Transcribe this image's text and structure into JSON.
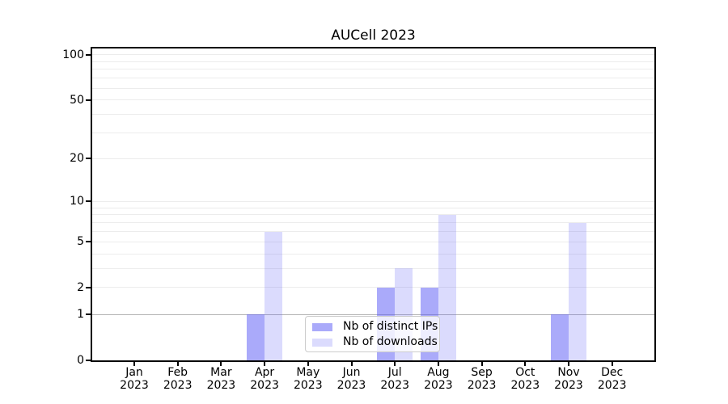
{
  "chart_data": {
    "type": "bar",
    "title": "AUCell 2023",
    "categories": [
      "Jan\n2023",
      "Feb\n2023",
      "Mar\n2023",
      "Apr\n2023",
      "May\n2023",
      "Jun\n2023",
      "Jul\n2023",
      "Aug\n2023",
      "Sep\n2023",
      "Oct\n2023",
      "Nov\n2023",
      "Dec\n2023"
    ],
    "series": [
      {
        "name": "Nb of distinct IPs",
        "color": "rgba(85,85,245,0.5)",
        "values": [
          0,
          0,
          0,
          1,
          0,
          0,
          2,
          2,
          0,
          0,
          1,
          0
        ]
      },
      {
        "name": "Nb of downloads",
        "color": "rgba(85,85,245,0.21)",
        "values": [
          0,
          0,
          0,
          6,
          0,
          0,
          3,
          8,
          0,
          0,
          7,
          0
        ]
      }
    ],
    "xlabel": "",
    "ylabel": "",
    "yscale": "log1p",
    "ylim": [
      0,
      110
    ],
    "yticks": [
      0,
      1,
      2,
      5,
      10,
      20,
      50,
      100
    ],
    "minor_gridlines": [
      2,
      3,
      4,
      5,
      6,
      7,
      8,
      9,
      10,
      20,
      30,
      40,
      50,
      60,
      70,
      80,
      90,
      100
    ],
    "emphasized_gridlines": [
      1
    ],
    "grid": true,
    "legend_position": "lower center, inside plot",
    "colors": {
      "bar_dark": "rgba(85,85,245,0.5)",
      "bar_light": "rgba(85,85,245,0.21)",
      "gridline_minor": "#ececec",
      "gridline_emphasized": "#b3b3b3",
      "spine": "#000000",
      "legend_border": "#cccccc"
    }
  }
}
